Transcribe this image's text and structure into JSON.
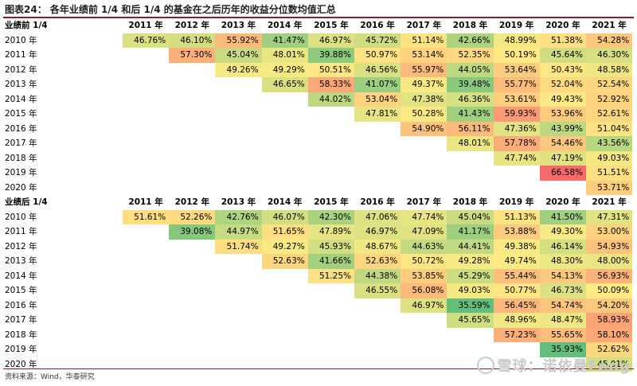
{
  "title": "图表24：  各年业绩前 1/4 和后 1/4 的基金在之后历年的收益分位数均值汇总",
  "years": [
    "2011 年",
    "2012 年",
    "2013 年",
    "2014 年",
    "2015 年",
    "2016 年",
    "2017 年",
    "2018 年",
    "2019 年",
    "2020 年",
    "2021 年"
  ],
  "top": {
    "label": "业绩前 1/4",
    "rows": [
      {
        "year": "2010 年",
        "values": [
          "46.76%",
          "46.10%",
          "55.92%",
          "41.47%",
          "46.97%",
          "45.72%",
          "51.14%",
          "42.66%",
          "48.99%",
          "51.38%",
          "54.28%"
        ]
      },
      {
        "year": "2011 年",
        "values": [
          null,
          "57.30%",
          "45.04%",
          "48.01%",
          "39.88%",
          "50.97%",
          "53.14%",
          "52.35%",
          "50.19%",
          "45.64%",
          "46.30%"
        ]
      },
      {
        "year": "2012 年",
        "values": [
          null,
          null,
          "49.26%",
          "49.29%",
          "50.51%",
          "46.56%",
          "55.97%",
          "44.05%",
          "53.64%",
          "50.43%",
          "48.58%"
        ]
      },
      {
        "year": "2013 年",
        "values": [
          null,
          null,
          null,
          "46.65%",
          "58.33%",
          "41.07%",
          "49.37%",
          "39.48%",
          "55.77%",
          "52.04%",
          "52.54%"
        ]
      },
      {
        "year": "2014 年",
        "values": [
          null,
          null,
          null,
          null,
          "44.02%",
          "53.04%",
          "47.38%",
          "46.36%",
          "53.61%",
          "49.43%",
          "52.92%"
        ]
      },
      {
        "year": "2015 年",
        "values": [
          null,
          null,
          null,
          null,
          null,
          "47.81%",
          "50.28%",
          "41.43%",
          "59.93%",
          "53.96%",
          "52.61%"
        ]
      },
      {
        "year": "2016 年",
        "values": [
          null,
          null,
          null,
          null,
          null,
          null,
          "54.90%",
          "56.11%",
          "47.36%",
          "43.99%",
          "51.04%"
        ]
      },
      {
        "year": "2017 年",
        "values": [
          null,
          null,
          null,
          null,
          null,
          null,
          null,
          "48.01%",
          "57.78%",
          "54.46%",
          "43.56%"
        ]
      },
      {
        "year": "2018 年",
        "values": [
          null,
          null,
          null,
          null,
          null,
          null,
          null,
          null,
          "47.74%",
          "47.19%",
          "49.03%"
        ]
      },
      {
        "year": "2019 年",
        "values": [
          null,
          null,
          null,
          null,
          null,
          null,
          null,
          null,
          null,
          "66.58%",
          "51.51%"
        ]
      },
      {
        "year": "2020 年",
        "values": [
          null,
          null,
          null,
          null,
          null,
          null,
          null,
          null,
          null,
          null,
          "53.71%"
        ]
      }
    ]
  },
  "bottom": {
    "label": "业绩后 1/4",
    "rows": [
      {
        "year": "2010 年",
        "values": [
          "51.61%",
          "52.26%",
          "42.76%",
          "46.07%",
          "42.30%",
          "47.06%",
          "47.74%",
          "45.04%",
          "51.13%",
          "41.50%",
          "47.31%"
        ]
      },
      {
        "year": "2011 年",
        "values": [
          null,
          "39.08%",
          "44.97%",
          "51.65%",
          "47.89%",
          "46.97%",
          "47.09%",
          "41.17%",
          "53.88%",
          "49.30%",
          "53.00%"
        ]
      },
      {
        "year": "2012 年",
        "values": [
          null,
          null,
          "51.74%",
          "49.27%",
          "45.93%",
          "48.67%",
          "44.63%",
          "44.41%",
          "49.38%",
          "46.14%",
          "54.93%"
        ]
      },
      {
        "year": "2013 年",
        "values": [
          null,
          null,
          null,
          "52.63%",
          "41.66%",
          "52.63%",
          "50.72%",
          "49.28%",
          "49.74%",
          "48.30%",
          "48.00%"
        ]
      },
      {
        "year": "2014 年",
        "values": [
          null,
          null,
          null,
          null,
          "51.25%",
          "44.38%",
          "53.85%",
          "45.29%",
          "55.44%",
          "54.13%",
          "56.93%"
        ]
      },
      {
        "year": "2015 年",
        "values": [
          null,
          null,
          null,
          null,
          null,
          "46.55%",
          "56.08%",
          "49.03%",
          "50.77%",
          "46.73%",
          "50.09%"
        ]
      },
      {
        "year": "2016 年",
        "values": [
          null,
          null,
          null,
          null,
          null,
          null,
          "46.97%",
          "35.59%",
          "56.45%",
          "54.74%",
          "54.20%"
        ]
      },
      {
        "year": "2017 年",
        "values": [
          null,
          null,
          null,
          null,
          null,
          null,
          null,
          "45.65%",
          "48.96%",
          "48.47%",
          "58.93%"
        ]
      },
      {
        "year": "2018 年",
        "values": [
          null,
          null,
          null,
          null,
          null,
          null,
          null,
          null,
          "57.23%",
          "55.65%",
          "58.10%"
        ]
      },
      {
        "year": "2019 年",
        "values": [
          null,
          null,
          null,
          null,
          null,
          null,
          null,
          null,
          null,
          "35.93%",
          "52.62%"
        ]
      },
      {
        "year": "2020 年",
        "values": [
          null,
          null,
          null,
          null,
          null,
          null,
          null,
          null,
          null,
          null,
          "45.91%"
        ]
      }
    ]
  },
  "source": "资料来源：Wind，华泰研究",
  "watermark": "雪球：诺依曼Feng"
}
